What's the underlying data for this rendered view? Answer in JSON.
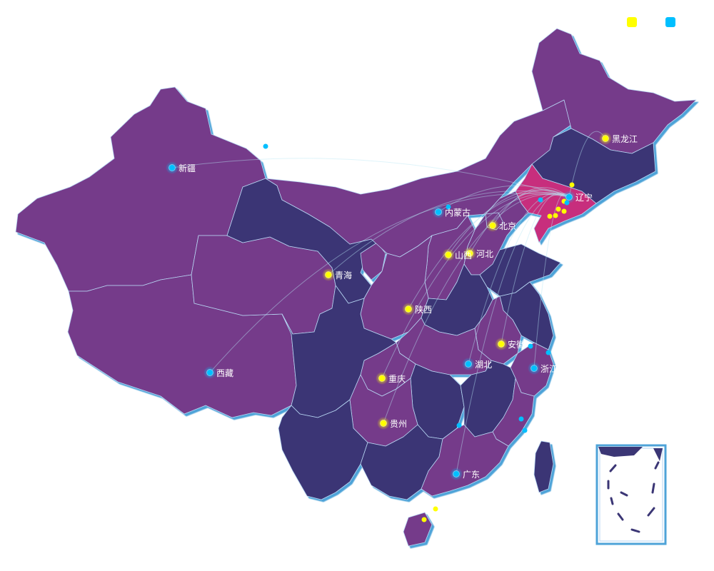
{
  "legend": [
    {
      "label": "",
      "color": "#ffff00"
    },
    {
      "label": "",
      "color": "#00bfff"
    }
  ],
  "colors": {
    "region_light": "#753a8a",
    "region_dark": "#3b3675",
    "region_highlight": "#c72f7d",
    "border": "#b7d6f3",
    "shadow": "#4ea3d8",
    "yellow_point": "#ffff00",
    "blue_point": "#00bfff"
  },
  "highlighted_region": "辽宁",
  "provinces": [
    {
      "name": "新疆",
      "group": "blue"
    },
    {
      "name": "西藏",
      "group": "blue"
    },
    {
      "name": "青海",
      "group": "yellow"
    },
    {
      "name": "内蒙古",
      "group": "blue"
    },
    {
      "name": "黑龙江",
      "group": "yellow"
    },
    {
      "name": "辽宁",
      "group": "blue"
    },
    {
      "name": "北京",
      "group": "yellow"
    },
    {
      "name": "河北",
      "group": "yellow"
    },
    {
      "name": "山西",
      "group": "yellow"
    },
    {
      "name": "陕西",
      "group": "yellow"
    },
    {
      "name": "安徽",
      "group": "yellow"
    },
    {
      "name": "湖北",
      "group": "blue"
    },
    {
      "name": "浙江",
      "group": "blue"
    },
    {
      "name": "重庆",
      "group": "yellow"
    },
    {
      "name": "贵州",
      "group": "yellow"
    },
    {
      "name": "广东",
      "group": "blue"
    }
  ]
}
